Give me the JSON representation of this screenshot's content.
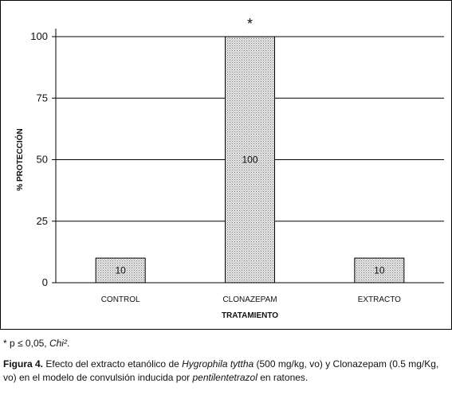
{
  "chart_data": {
    "type": "bar",
    "categories": [
      "CONTROL",
      "CLONAZEPAM",
      "EXTRACTO"
    ],
    "values": [
      10,
      100,
      10
    ],
    "data_labels": [
      "10",
      "100",
      "10"
    ],
    "significance": [
      "",
      "*",
      ""
    ],
    "xlabel": "TRATAMIENTO",
    "ylabel": "% PROTECCIÓN",
    "ylim": [
      0,
      100
    ],
    "yticks": [
      0,
      25,
      50,
      75,
      100
    ],
    "grid": true,
    "legend": "none",
    "colors": {
      "bar_fill": "#d9d9d9",
      "bar_pattern": "#8c8c8c",
      "axis": "#000000"
    }
  },
  "footnote": {
    "prefix": "* p ≤ 0,05, ",
    "test": "Chi²",
    "suffix": "."
  },
  "caption": {
    "label": "Figura 4.",
    "text1": " Efecto del extracto etanólico de ",
    "species": "Hygrophila tyttha",
    "text2": " (500 mg/kg, vo) y Clonazepam (0.5 mg/Kg, vo) en el modelo de convulsión inducida por ",
    "compound": "pentilentetrazol",
    "text3": " en ratones."
  }
}
